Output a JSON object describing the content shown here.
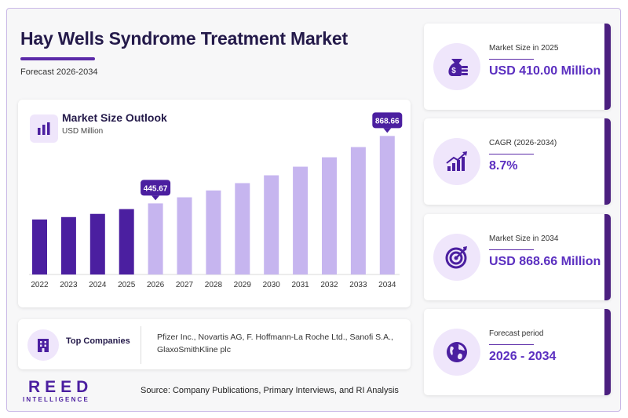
{
  "header": {
    "title": "Hay Wells Syndrome Treatment Market",
    "subtitle": "Forecast 2026-2034"
  },
  "chart_panel": {
    "title": "Market Size Outlook",
    "unit": "USD Million"
  },
  "chart_data": {
    "type": "bar",
    "title": "Market Size Outlook",
    "ylabel": "USD Million",
    "categories": [
      "2022",
      "2023",
      "2024",
      "2025",
      "2026",
      "2027",
      "2028",
      "2029",
      "2030",
      "2031",
      "2032",
      "2033",
      "2034"
    ],
    "values": [
      345,
      360,
      380,
      410,
      445.67,
      484,
      527,
      573,
      622,
      676,
      735,
      799,
      868.66
    ],
    "historical_color": "#4b1fa0",
    "forecast_color": "#c6b5ef",
    "callouts": [
      {
        "index": 4,
        "label": "445.67"
      },
      {
        "index": 12,
        "label": "868.66"
      }
    ],
    "callout_color": "#4b1fa0",
    "ylim": [
      0,
      900
    ]
  },
  "companies": {
    "label": "Top Companies",
    "text": "Pfizer Inc., Novartis AG, F. Hoffmann-La Roche Ltd., Sanofi S.A., GlaxoSmithKline plc"
  },
  "logo": {
    "main": "REED",
    "sub": "INTELLIGENCE"
  },
  "source": "Source: Company Publications, Primary Interviews, and RI Analysis",
  "kpis": [
    {
      "label": "Market Size in 2025",
      "value": "USD 410.00 Million",
      "icon": "money-bag-icon"
    },
    {
      "label": "CAGR (2026-2034)",
      "value": "8.7%",
      "icon": "growth-chart-icon"
    },
    {
      "label": "Market Size in 2034",
      "value": "USD 868.66 Million",
      "icon": "target-icon"
    },
    {
      "label": "Forecast period",
      "value": "2026 - 2034",
      "icon": "globe-icon"
    }
  ],
  "colors": {
    "accent": "#5b2fc0",
    "dark_accent": "#4b1f7f",
    "title": "#241a4a"
  }
}
